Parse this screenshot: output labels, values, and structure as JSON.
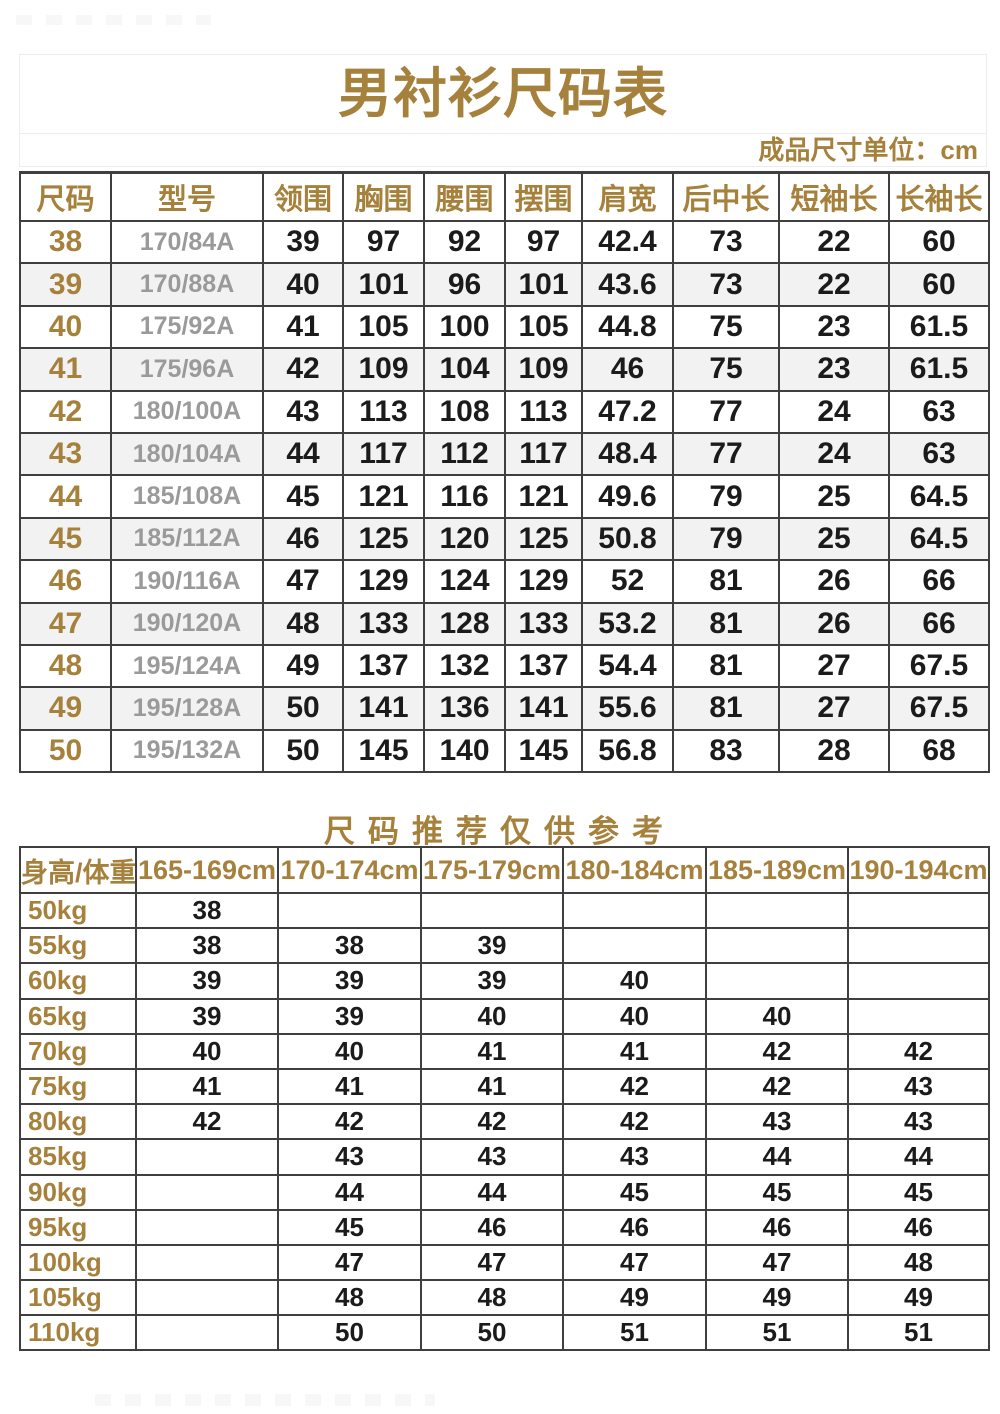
{
  "page": {
    "title": "男衬衫尺码表",
    "unit_note": "成品尺寸单位：cm",
    "section2_title": "尺码推荐仅供参考"
  },
  "colors": {
    "accent_gold": "#A6813C",
    "model_gray": "#9A9A9A",
    "number_black": "#1B1B1B",
    "row_stripe": "#F2F2F2",
    "table_border": "#3F3F3F"
  },
  "size_table": {
    "columns": [
      "尺码",
      "型号",
      "领围",
      "胸围",
      "腰围",
      "摆围",
      "肩宽",
      "后中长",
      "短袖长",
      "长袖长"
    ],
    "rows": [
      [
        "38",
        "170/84A",
        "39",
        "97",
        "92",
        "97",
        "42.4",
        "73",
        "22",
        "60"
      ],
      [
        "39",
        "170/88A",
        "40",
        "101",
        "96",
        "101",
        "43.6",
        "73",
        "22",
        "60"
      ],
      [
        "40",
        "175/92A",
        "41",
        "105",
        "100",
        "105",
        "44.8",
        "75",
        "23",
        "61.5"
      ],
      [
        "41",
        "175/96A",
        "42",
        "109",
        "104",
        "109",
        "46",
        "75",
        "23",
        "61.5"
      ],
      [
        "42",
        "180/100A",
        "43",
        "113",
        "108",
        "113",
        "47.2",
        "77",
        "24",
        "63"
      ],
      [
        "43",
        "180/104A",
        "44",
        "117",
        "112",
        "117",
        "48.4",
        "77",
        "24",
        "63"
      ],
      [
        "44",
        "185/108A",
        "45",
        "121",
        "116",
        "121",
        "49.6",
        "79",
        "25",
        "64.5"
      ],
      [
        "45",
        "185/112A",
        "46",
        "125",
        "120",
        "125",
        "50.8",
        "79",
        "25",
        "64.5"
      ],
      [
        "46",
        "190/116A",
        "47",
        "129",
        "124",
        "129",
        "52",
        "81",
        "26",
        "66"
      ],
      [
        "47",
        "190/120A",
        "48",
        "133",
        "128",
        "133",
        "53.2",
        "81",
        "26",
        "66"
      ],
      [
        "48",
        "195/124A",
        "49",
        "137",
        "132",
        "137",
        "54.4",
        "81",
        "27",
        "67.5"
      ],
      [
        "49",
        "195/128A",
        "50",
        "141",
        "136",
        "141",
        "55.6",
        "81",
        "27",
        "67.5"
      ],
      [
        "50",
        "195/132A",
        "50",
        "145",
        "140",
        "145",
        "56.8",
        "83",
        "28",
        "68"
      ]
    ]
  },
  "recommend_table": {
    "columns": [
      "身高/体重",
      "165-169cm",
      "170-174cm",
      "175-179cm",
      "180-184cm",
      "185-189cm",
      "190-194cm"
    ],
    "rows": [
      [
        "50kg",
        "38",
        "",
        "",
        "",
        "",
        ""
      ],
      [
        "55kg",
        "38",
        "38",
        "39",
        "",
        "",
        ""
      ],
      [
        "60kg",
        "39",
        "39",
        "39",
        "40",
        "",
        ""
      ],
      [
        "65kg",
        "39",
        "39",
        "40",
        "40",
        "40",
        ""
      ],
      [
        "70kg",
        "40",
        "40",
        "41",
        "41",
        "42",
        "42"
      ],
      [
        "75kg",
        "41",
        "41",
        "41",
        "42",
        "42",
        "43"
      ],
      [
        "80kg",
        "42",
        "42",
        "42",
        "42",
        "43",
        "43"
      ],
      [
        "85kg",
        "",
        "43",
        "43",
        "43",
        "44",
        "44"
      ],
      [
        "90kg",
        "",
        "44",
        "44",
        "45",
        "45",
        "45"
      ],
      [
        "95kg",
        "",
        "45",
        "46",
        "46",
        "46",
        "46"
      ],
      [
        "100kg",
        "",
        "47",
        "47",
        "47",
        "47",
        "48"
      ],
      [
        "105kg",
        "",
        "48",
        "48",
        "49",
        "49",
        "49"
      ],
      [
        "110kg",
        "",
        "50",
        "50",
        "51",
        "51",
        "51"
      ]
    ]
  }
}
